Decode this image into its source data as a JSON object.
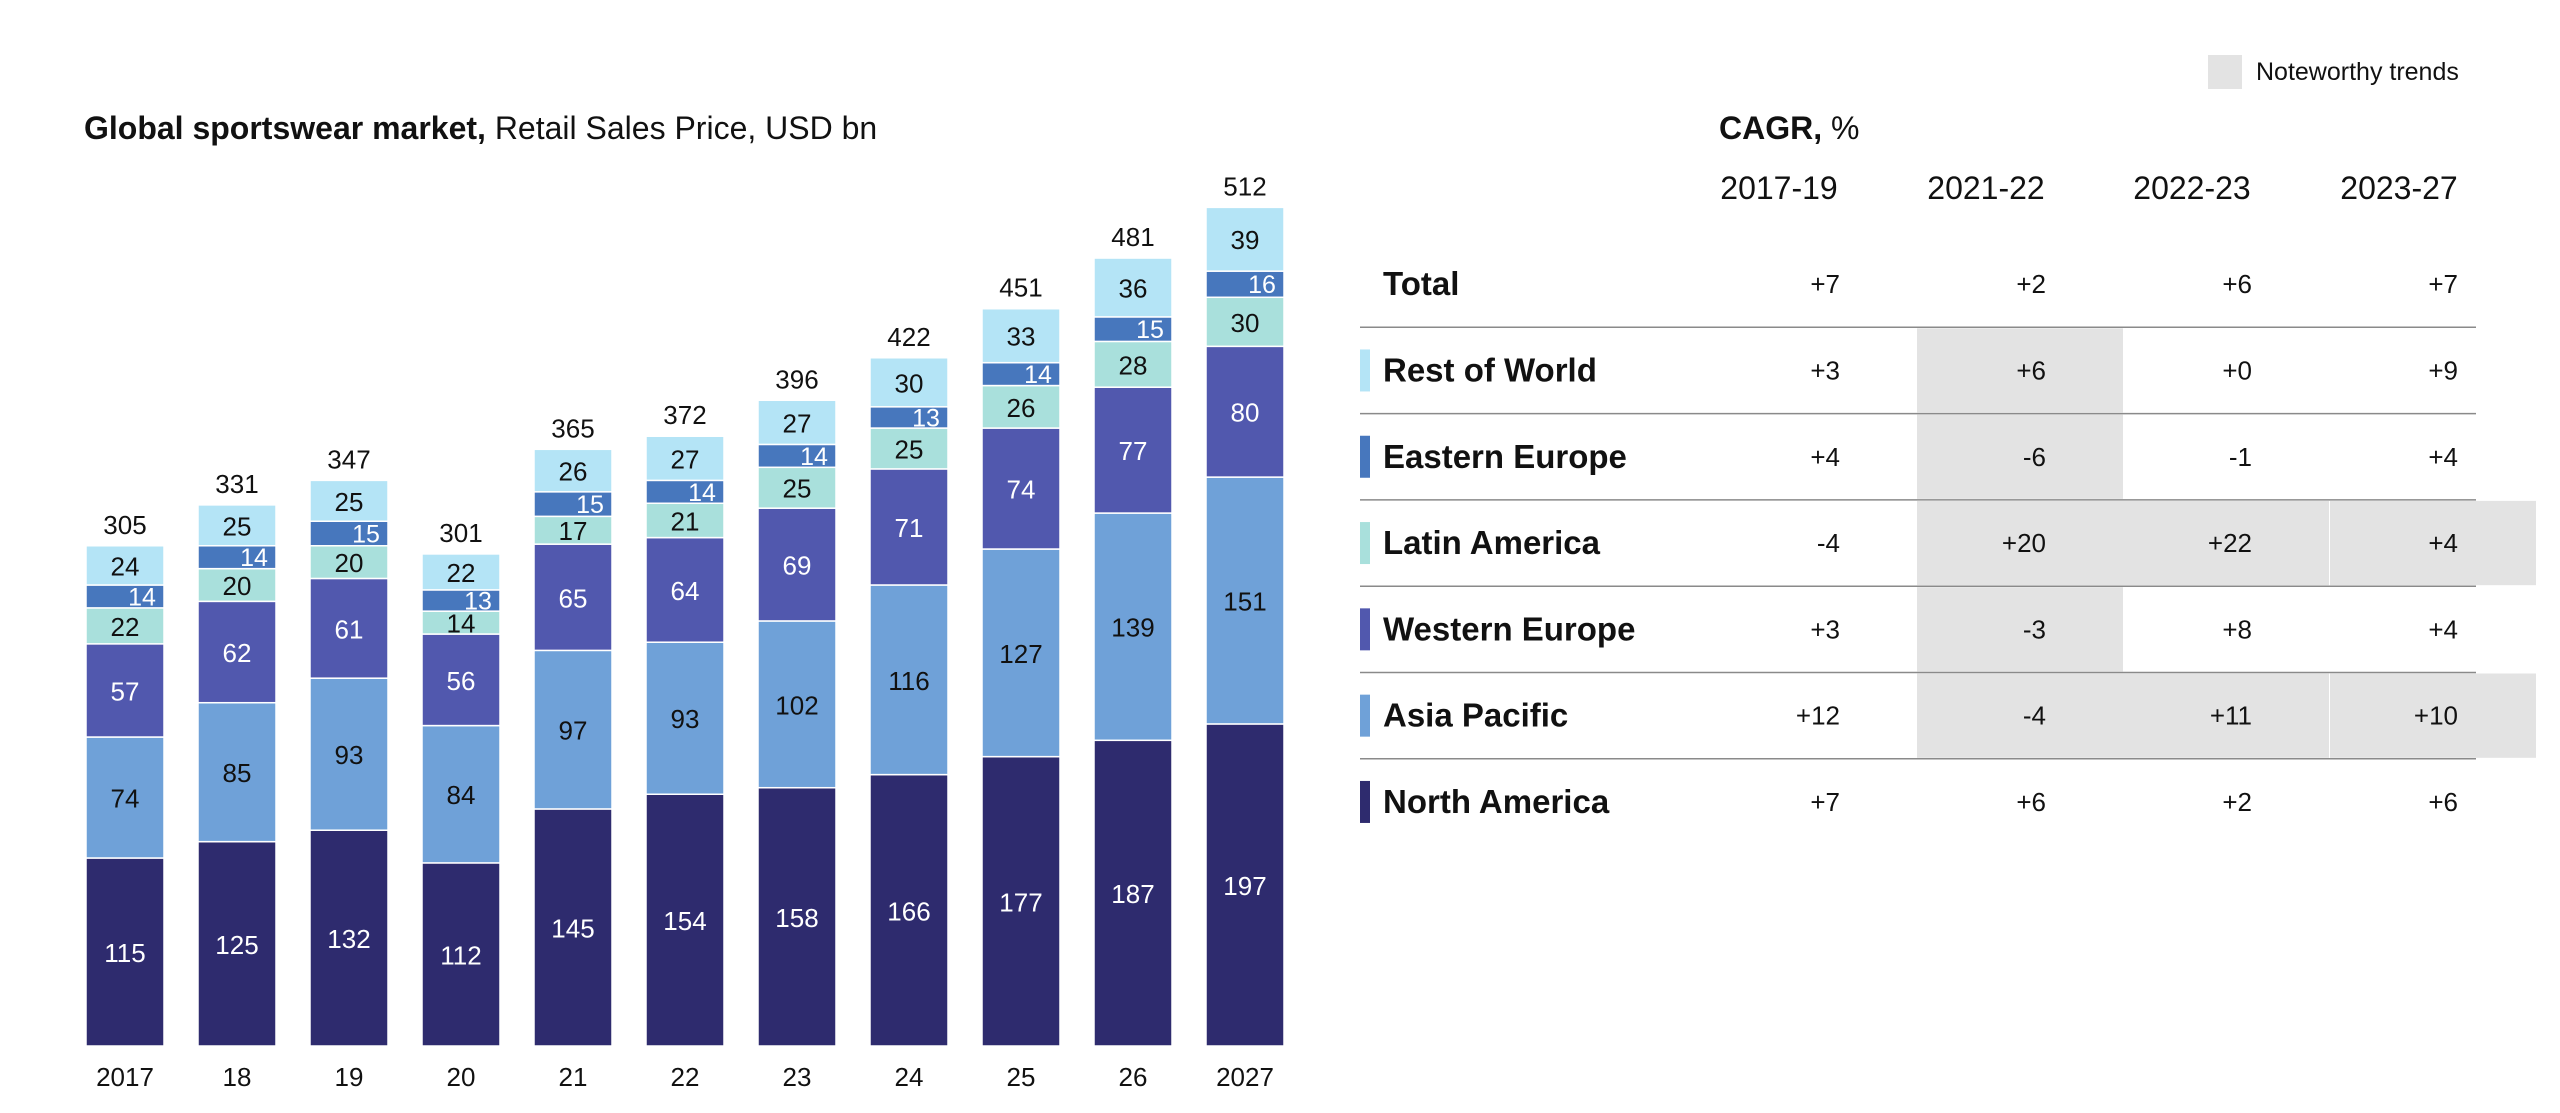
{
  "legend": {
    "label": "Noteworthy trends",
    "color": "#e3e3e3"
  },
  "chart_title": {
    "bold": "Global sportswear market,",
    "rest": " Retail Sales Price, USD bn"
  },
  "cagr_title": {
    "bold": "CAGR,",
    "rest": " %"
  },
  "colors": {
    "North America": "#2e2b6e",
    "Asia Pacific": "#6fa1d8",
    "Western Europe": "#5158ae",
    "Latin America": "#a9e0dc",
    "Eastern Europe": "#4777bd",
    "Rest of World": "#b4e4f6",
    "highlight": "#e3e3e3"
  },
  "chart_data": {
    "type": "bar",
    "stacked": true,
    "categories": [
      "2017",
      "18",
      "19",
      "20",
      "21",
      "22",
      "23",
      "24",
      "25",
      "26",
      "2027"
    ],
    "series": [
      {
        "name": "North America",
        "values": [
          115,
          125,
          132,
          112,
          145,
          154,
          158,
          166,
          177,
          187,
          197
        ]
      },
      {
        "name": "Asia Pacific",
        "values": [
          74,
          85,
          93,
          84,
          97,
          93,
          102,
          116,
          127,
          139,
          151
        ]
      },
      {
        "name": "Western Europe",
        "values": [
          57,
          62,
          61,
          56,
          65,
          64,
          69,
          71,
          74,
          77,
          80
        ]
      },
      {
        "name": "Latin America",
        "values": [
          22,
          20,
          20,
          14,
          17,
          21,
          25,
          25,
          26,
          28,
          30
        ]
      },
      {
        "name": "Eastern Europe",
        "values": [
          14,
          14,
          15,
          13,
          15,
          14,
          14,
          13,
          14,
          15,
          16
        ]
      },
      {
        "name": "Rest of World",
        "values": [
          24,
          25,
          25,
          22,
          26,
          27,
          27,
          30,
          33,
          36,
          39
        ]
      }
    ],
    "totals": [
      305,
      331,
      347,
      301,
      365,
      372,
      396,
      422,
      451,
      481,
      512
    ],
    "title": "Global sportswear market, Retail Sales Price, USD bn",
    "ylim": [
      0,
      512
    ]
  },
  "cagr_table": {
    "columns": [
      "2017-19",
      "2021-22",
      "2022-23",
      "2023-27"
    ],
    "rows": [
      {
        "region": "Total",
        "swatch": "",
        "values": [
          "+7",
          "+2",
          "+6",
          "+7"
        ],
        "highlight": [
          false,
          false,
          false,
          false
        ]
      },
      {
        "region": "Rest of World",
        "swatch": "#b4e4f6",
        "values": [
          "+3",
          "+6",
          "+0",
          "+9"
        ],
        "highlight": [
          false,
          true,
          false,
          false
        ]
      },
      {
        "region": "Eastern Europe",
        "swatch": "#4777bd",
        "values": [
          "+4",
          "-6",
          "-1",
          "+4"
        ],
        "highlight": [
          false,
          true,
          false,
          false
        ]
      },
      {
        "region": "Latin America",
        "swatch": "#a9e0dc",
        "values": [
          "-4",
          "+20",
          "+22",
          "+4"
        ],
        "highlight": [
          false,
          true,
          true,
          true
        ]
      },
      {
        "region": "Western Europe",
        "swatch": "#5158ae",
        "values": [
          "+3",
          "-3",
          "+8",
          "+4"
        ],
        "highlight": [
          false,
          true,
          false,
          false
        ]
      },
      {
        "region": "Asia Pacific",
        "swatch": "#6fa1d8",
        "values": [
          "+12",
          "-4",
          "+11",
          "+10"
        ],
        "highlight": [
          false,
          true,
          true,
          true
        ]
      },
      {
        "region": "North America",
        "swatch": "#2e2b6e",
        "values": [
          "+7",
          "+6",
          "+2",
          "+6"
        ],
        "highlight": [
          false,
          false,
          false,
          false
        ]
      }
    ]
  }
}
